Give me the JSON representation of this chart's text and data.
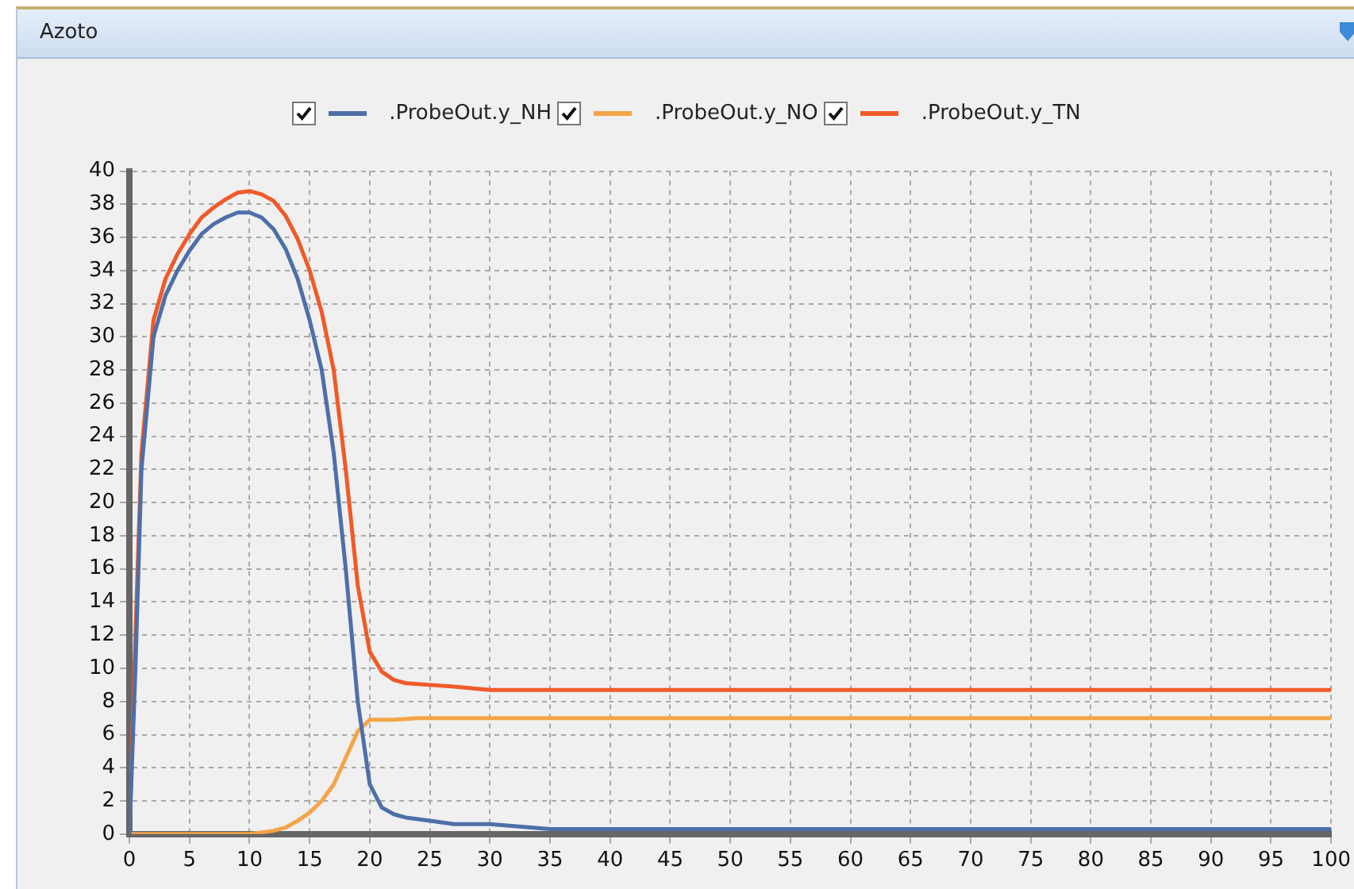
{
  "chart_data": {
    "type": "line",
    "title": "Azoto",
    "legend": "top",
    "grid": true,
    "marker": "none",
    "line_style": "solid",
    "xlim": [
      0,
      100
    ],
    "xticks": [
      0,
      5,
      10,
      15,
      20,
      25,
      30,
      35,
      40,
      45,
      50,
      55,
      60,
      65,
      70,
      75,
      80,
      85,
      90,
      95,
      100
    ],
    "ylim": [
      0,
      40
    ],
    "yticks": [
      0,
      2,
      4,
      6,
      8,
      10,
      12,
      14,
      16,
      18,
      20,
      22,
      24,
      26,
      28,
      30,
      32,
      34,
      36,
      38,
      40
    ],
    "series": [
      {
        "name": ".ProbeOut.y_NH",
        "color": "#4e6fa8",
        "x": [
          0,
          0.5,
          1,
          2,
          3,
          4,
          5,
          6,
          7,
          8,
          9,
          10,
          11,
          12,
          13,
          14,
          15,
          16,
          17,
          18,
          19,
          20,
          21,
          22,
          23,
          25,
          27,
          30,
          35,
          100
        ],
        "values": [
          0,
          10,
          22,
          30,
          32.5,
          34,
          35.2,
          36.2,
          36.8,
          37.2,
          37.5,
          37.5,
          37.2,
          36.5,
          35.3,
          33.5,
          31,
          28,
          23,
          16,
          8,
          3,
          1.6,
          1.2,
          1,
          0.8,
          0.6,
          0.6,
          0.3,
          0.3
        ]
      },
      {
        "name": ".ProbeOut.y_NO",
        "color": "#f5a447",
        "x": [
          0,
          10,
          12,
          13,
          14,
          15,
          16,
          17,
          18,
          19,
          20,
          22,
          24,
          25,
          100
        ],
        "values": [
          0,
          0,
          0.2,
          0.4,
          0.8,
          1.3,
          2,
          3,
          4.6,
          6.2,
          6.9,
          6.9,
          7,
          7,
          7
        ]
      },
      {
        "name": ".ProbeOut.y_TN",
        "color": "#f05a28",
        "x": [
          0,
          0.5,
          1,
          2,
          3,
          4,
          5,
          6,
          7,
          8,
          9,
          10,
          11,
          12,
          13,
          14,
          15,
          16,
          17,
          18,
          19,
          20,
          21,
          22,
          23,
          25,
          27,
          30,
          100
        ],
        "values": [
          0,
          12,
          23,
          31,
          33.5,
          35,
          36.2,
          37.2,
          37.8,
          38.3,
          38.7,
          38.8,
          38.6,
          38.2,
          37.3,
          35.9,
          34,
          31.5,
          28,
          22,
          15,
          11,
          9.8,
          9.3,
          9.1,
          9,
          8.9,
          8.7,
          8.7
        ]
      }
    ]
  }
}
